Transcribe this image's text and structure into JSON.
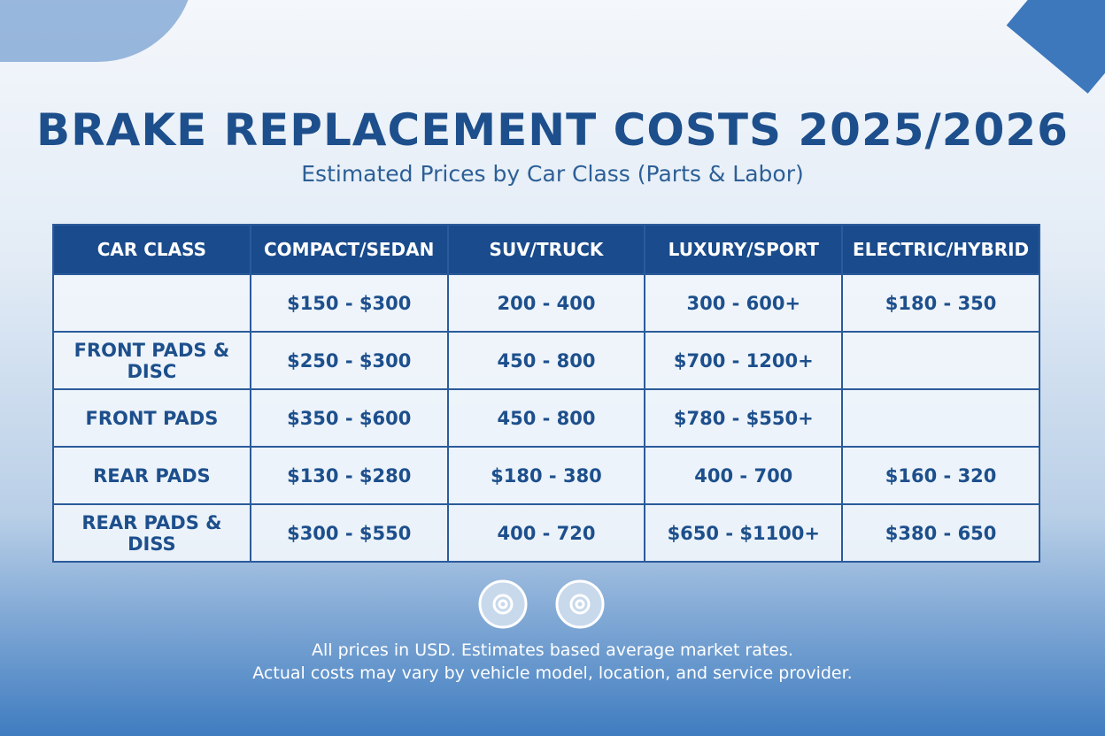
{
  "header": {
    "title": "BRAKE REPLACEMENT COSTS 2025/2026",
    "subtitle": "Estimated Prices by Car Class (Parts & Labor)"
  },
  "table": {
    "columns": [
      "CAR CLASS",
      "COMPACT/SEDAN",
      "SUV/TRUCK",
      "LUXURY/SPORT",
      "ELECTRIC/HYBRID"
    ],
    "rows": [
      [
        null,
        "$150 - $300",
        "200 - 400",
        "300 - 600+",
        "$180 - 350"
      ],
      [
        "FRONT PADS & DISC",
        "$250 - $300",
        "450 - 800",
        "$700 - 1200+",
        null
      ],
      [
        "FRONT PADS",
        "$350 - $600",
        "450 - 800",
        "$780 - $550+",
        null
      ],
      [
        "REAR PADS",
        "$130 - $280",
        "$180 - 380",
        "400 - 700",
        "$160 - 320"
      ],
      [
        "REAR PADS & DISS",
        "$300 - $550",
        "400 - 720",
        "$650 - $1100+",
        "$380 - 650"
      ]
    ]
  },
  "footer": {
    "notes": [
      "All prices in USD. Estimates based average market rates.",
      "Actual costs may vary by vehicle model, location, and service provider."
    ]
  }
}
